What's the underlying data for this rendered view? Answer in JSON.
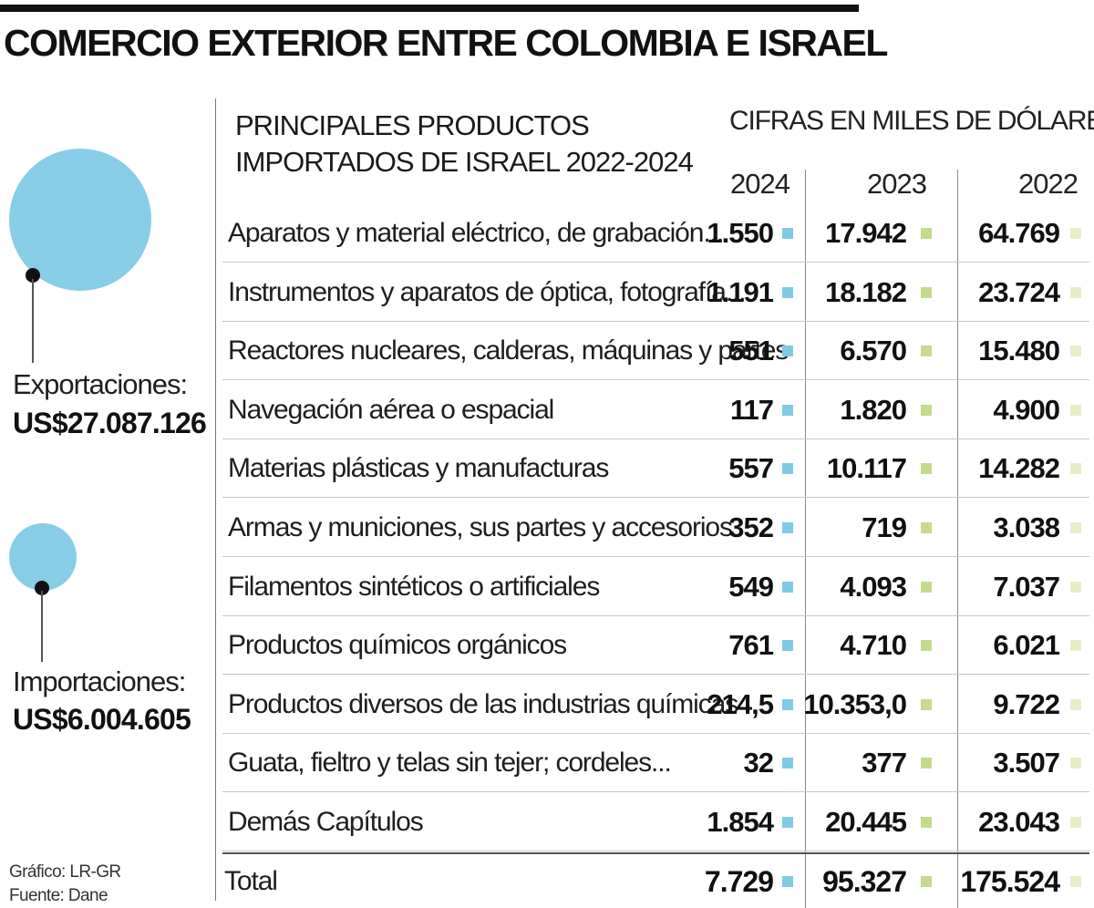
{
  "title": "COMERCIO EXTERIOR ENTRE COLOMBIA E ISRAEL",
  "colors": {
    "bubble": "#88cde6",
    "sq_2024": "#7fcbe3",
    "sq_2023": "#c4da8f",
    "sq_2022": "#e6eec8"
  },
  "summary": {
    "exports_label": "Exportaciones:",
    "exports_value": "US$27.087.126",
    "exports_amount": 27087126,
    "imports_label": "Importaciones:",
    "imports_value": "US$6.004.605",
    "imports_amount": 6004605
  },
  "credits": {
    "graphic": "Gráfico: LR-GR",
    "source": "Fuente: Dane"
  },
  "chart_data": {
    "type": "table",
    "title": "PRINCIPALES PRODUCTOS IMPORTADOS DE ISRAEL 2022-2024",
    "units": "CIFRAS EN MILES DE DÓLARES",
    "columns": [
      "2024",
      "2023",
      "2022"
    ],
    "rows": [
      {
        "label": "Aparatos y material eléctrico, de grabación...",
        "values": [
          "1.550",
          "17.942",
          "64.769"
        ]
      },
      {
        "label": "Instrumentos y aparatos de óptica, fotografía...",
        "values": [
          "1.191",
          "18.182",
          "23.724"
        ]
      },
      {
        "label": "Reactores nucleares, calderas, máquinas y partes",
        "values": [
          "551",
          "6.570",
          "15.480"
        ]
      },
      {
        "label": "Navegación aérea o espacial",
        "values": [
          "117",
          "1.820",
          "4.900"
        ]
      },
      {
        "label": "Materias plásticas y manufacturas",
        "values": [
          "557",
          "10.117",
          "14.282"
        ]
      },
      {
        "label": "Armas y municiones, sus partes y accesorios",
        "values": [
          "352",
          "719",
          "3.038"
        ]
      },
      {
        "label": "Filamentos sintéticos o artificiales",
        "values": [
          "549",
          "4.093",
          "7.037"
        ]
      },
      {
        "label": "Productos químicos orgánicos",
        "values": [
          "761",
          "4.710",
          "6.021"
        ]
      },
      {
        "label": "Productos diversos de las industrias químicas",
        "values": [
          "214,5",
          "10.353,0",
          "9.722"
        ]
      },
      {
        "label": "Guata, fieltro y telas sin tejer; cordeles...",
        "values": [
          "32",
          "377",
          "3.507"
        ]
      },
      {
        "label": "Demás Capítulos",
        "values": [
          "1.854",
          "20.445",
          "23.043"
        ]
      }
    ],
    "total": {
      "label": "Total",
      "values": [
        "7.729",
        "95.327",
        "175.524"
      ]
    }
  }
}
